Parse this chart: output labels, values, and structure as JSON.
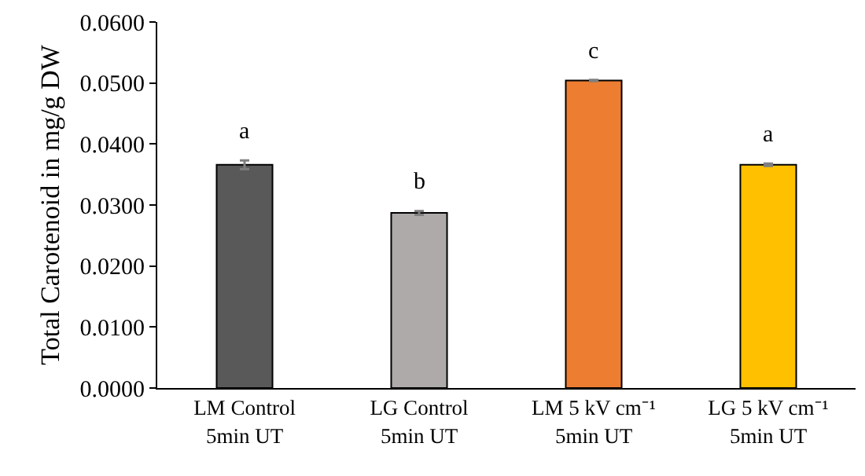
{
  "chart_data": {
    "type": "bar",
    "ylabel": "Total Carotenoid in mg/g DW",
    "categories": [
      "LM Control\n5min UT",
      "LG Control\n5min UT",
      "LM 5 kV cm⁻¹\n5min UT",
      "LG 5 kV cm⁻¹\n5min UT"
    ],
    "values": [
      0.0366,
      0.0287,
      0.0504,
      0.0366
    ],
    "colors": [
      "#595959",
      "#aeaaaa",
      "#ed7d31",
      "#ffc000"
    ],
    "errors": [
      0.0007,
      0.0003,
      0.0001,
      0.0002
    ],
    "ylim": [
      0,
      0.06
    ],
    "yticks": [
      {
        "value": 0,
        "label": "0.0000"
      },
      {
        "value": 0.01,
        "label": "0.0100"
      },
      {
        "value": 0.02,
        "label": "0.0200"
      },
      {
        "value": 0.03,
        "label": "0.0300"
      },
      {
        "value": 0.04,
        "label": "0.0400"
      },
      {
        "value": 0.05,
        "label": "0.0500"
      },
      {
        "value": 0.06,
        "label": "0.0600"
      }
    ],
    "grid": false,
    "annotations": [
      "a",
      "b",
      "c",
      "a"
    ]
  }
}
